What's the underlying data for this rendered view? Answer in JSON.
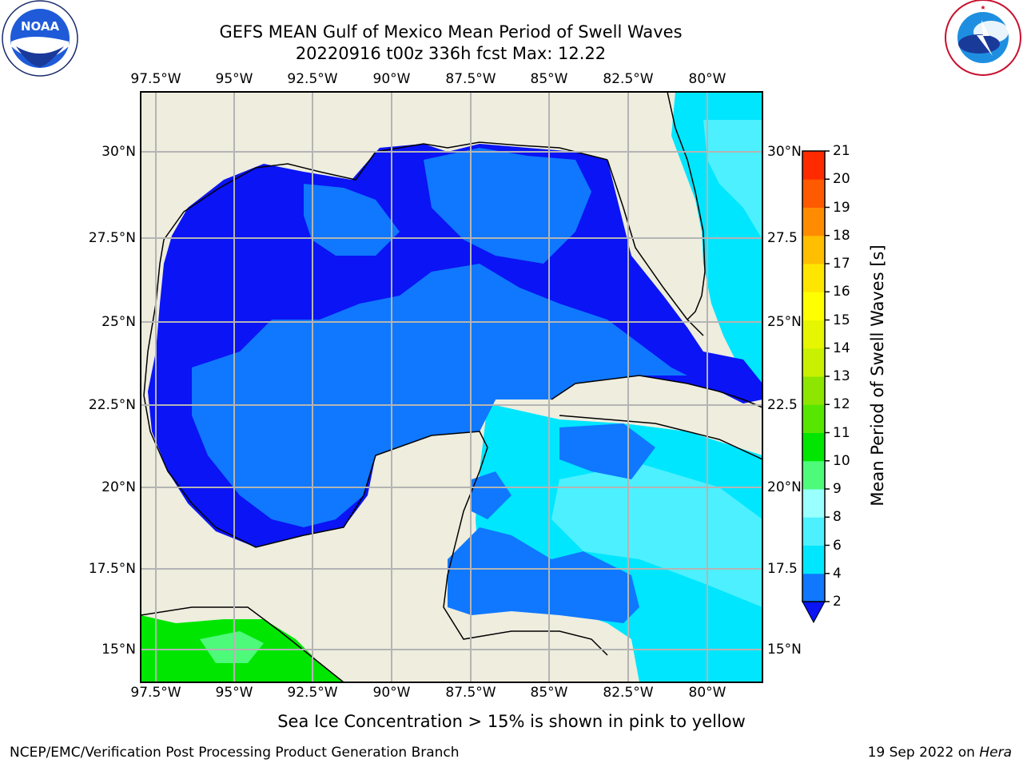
{
  "header": {
    "title_line1": "GEFS MEAN Gulf of Mexico Mean Period of Swell Waves",
    "title_line2": "20220916 t00z 336h fcst   Max: 12.22"
  },
  "logos": {
    "left": {
      "name": "noaa-logo",
      "text": "NOAA",
      "ring_text": "NATIONAL OCEANIC AND ATMOSPHERIC ADMINISTRATION · U.S. DEPARTMENT OF COMMERCE"
    },
    "right": {
      "name": "nws-logo",
      "ring_text": "NATIONAL WEATHER SERVICE"
    }
  },
  "axes": {
    "lon_labels": [
      "97.5°W",
      "95°W",
      "92.5°W",
      "90°W",
      "87.5°W",
      "85°W",
      "82.5°W",
      "80°W"
    ],
    "lat_labels_left": [
      "30°N",
      "27.5°N",
      "25°N",
      "22.5°N",
      "20°N",
      "17.5°N",
      "15°N"
    ],
    "lat_labels_right": [
      "30°N",
      "27.5",
      "25°N",
      "22.5",
      "20°N",
      "17.5",
      "15°N"
    ]
  },
  "colorbar": {
    "label": "Mean Period of Swell Waves [s]",
    "levels": [
      2,
      4,
      6,
      8,
      9,
      10,
      11,
      12,
      13,
      14,
      15,
      16,
      17,
      18,
      19,
      20,
      21
    ],
    "colors": [
      "#0f78ff",
      "#00e6ff",
      "#4df0ff",
      "#99ffff",
      "#4dfa7a",
      "#00e600",
      "#57e600",
      "#8ce600",
      "#c8f000",
      "#e6f500",
      "#ffff00",
      "#ffe600",
      "#ffbe00",
      "#ff8c00",
      "#ff5a00",
      "#ff2a00"
    ],
    "under_color": "#0a14f5"
  },
  "map_colors": {
    "land": "#eeedde",
    "deep_blue": "#0a14f5",
    "mid_blue": "#0f78ff",
    "cyan": "#00e6ff",
    "light_cyan": "#4df0ff",
    "green": "#00e600",
    "grid": "#b4b4b4"
  },
  "footer": {
    "note": "Sea Ice Concentration > 15% is shown in pink to yellow",
    "credit": "NCEP/EMC/Verification Post Processing Product Generation Branch",
    "date_prefix": "19 Sep 2022 on ",
    "date_host": "Hera"
  }
}
